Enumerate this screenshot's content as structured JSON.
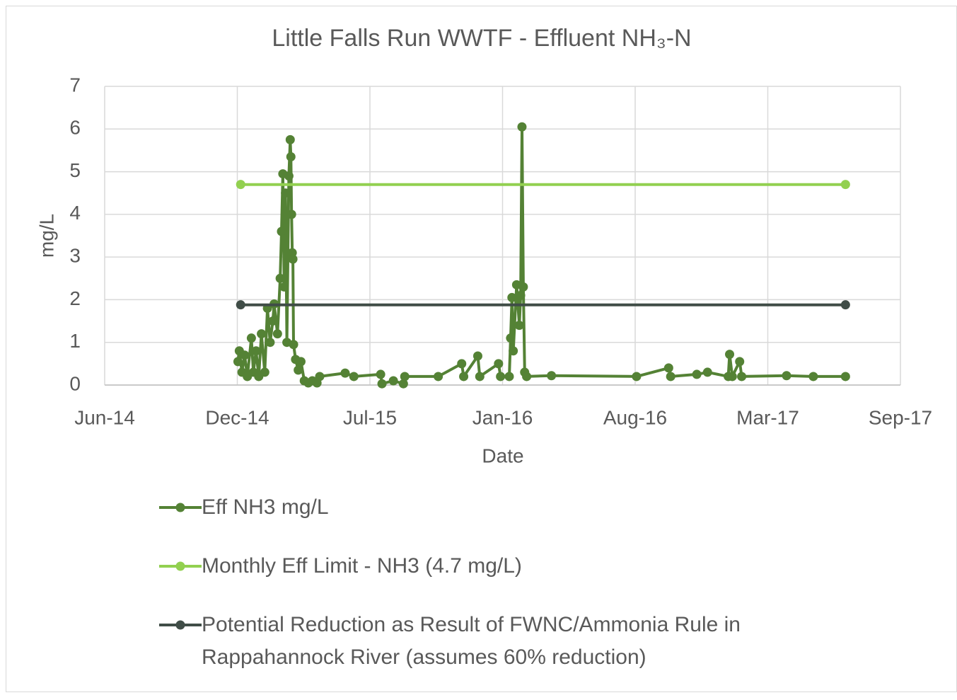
{
  "chart_data": {
    "type": "line",
    "title": "Little Falls Run WWTF - Effluent NH₃-N",
    "xlabel": "Date",
    "ylabel": "mg/L",
    "xlim": [
      41805,
      42993
    ],
    "xticks": [
      {
        "value": 41805,
        "label": "Jun-14"
      },
      {
        "value": 42003,
        "label": "Dec-14"
      },
      {
        "value": 42201,
        "label": "Jul-15"
      },
      {
        "value": 42399,
        "label": "Jan-16"
      },
      {
        "value": 42597,
        "label": "Aug-16"
      },
      {
        "value": 42795,
        "label": "Mar-17"
      },
      {
        "value": 42993,
        "label": "Sep-17"
      }
    ],
    "ylim": [
      0,
      7
    ],
    "yticks": [
      0,
      1,
      2,
      3,
      4,
      5,
      6,
      7
    ],
    "grid": true,
    "legend": "bottom",
    "series": [
      {
        "name": "Eff NH3 mg/L",
        "color": "#548235",
        "x": [
          42004,
          42006,
          42010,
          42014,
          42018,
          42024,
          42027,
          42031,
          42035,
          42039,
          42044,
          42048,
          42052,
          42056,
          42058,
          42063,
          42067,
          42069,
          42071,
          42073,
          42075,
          42077,
          42080,
          42082,
          42083,
          42084,
          42085,
          42086,
          42087,
          42090,
          42094,
          42098,
          42103,
          42109,
          42115,
          42122,
          42126,
          42164,
          42177,
          42217,
          42219,
          42236,
          42251,
          42253,
          42303,
          42338,
          42341,
          42362,
          42365,
          42393,
          42396,
          42409,
          42411,
          42413,
          42415,
          42420,
          42424,
          42426,
          42428,
          42430,
          42432,
          42435,
          42472,
          42599,
          42647,
          42650,
          42689,
          42705,
          42736,
          42738,
          42742,
          42753,
          42756,
          42823,
          42863,
          42911
        ],
        "values": [
          0.55,
          0.8,
          0.3,
          0.7,
          0.2,
          1.1,
          0.3,
          0.8,
          0.2,
          1.2,
          0.3,
          1.8,
          1.0,
          1.5,
          1.9,
          1.2,
          2.5,
          3.6,
          4.95,
          2.3,
          4.5,
          1.0,
          4.9,
          5.75,
          5.35,
          4.0,
          3.1,
          2.95,
          0.95,
          0.6,
          0.35,
          0.55,
          0.1,
          0.05,
          0.1,
          0.05,
          0.2,
          0.28,
          0.2,
          0.25,
          0.03,
          0.1,
          0.03,
          0.2,
          0.2,
          0.5,
          0.2,
          0.68,
          0.2,
          0.5,
          0.2,
          0.2,
          1.1,
          2.05,
          0.8,
          2.35,
          1.4,
          2.1,
          6.05,
          2.3,
          0.3,
          0.2,
          0.22,
          0.2,
          0.4,
          0.2,
          0.25,
          0.3,
          0.2,
          0.72,
          0.2,
          0.55,
          0.2,
          0.22,
          0.2,
          0.2
        ]
      },
      {
        "name": "Monthly Eff Limit - NH3 (4.7 mg/L)",
        "color": "#92d050",
        "x": [
          42008,
          42911
        ],
        "values": [
          4.7,
          4.7
        ]
      },
      {
        "name": "Potential Reduction as Result of FWNC/Ammonia Rule in Rappahannock River (assumes 60% reduction)",
        "color": "#404d47",
        "x": [
          42008,
          42911
        ],
        "values": [
          1.88,
          1.88
        ]
      }
    ]
  }
}
